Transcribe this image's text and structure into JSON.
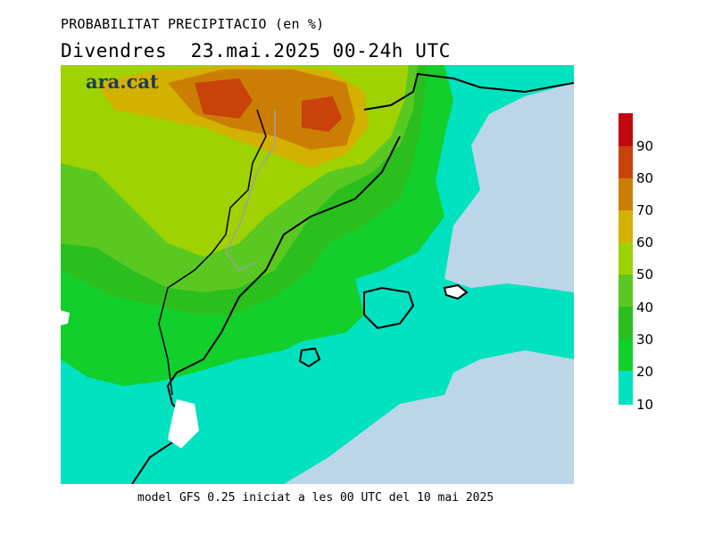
{
  "header": {
    "title": "PROBABILITAT PRECIPITACIO (en %)",
    "subtitle": "Divendres  23.mai.2025 00-24h UTC"
  },
  "logo": {
    "text": "ara.cat"
  },
  "legend": {
    "labels": [
      "90",
      "80",
      "70",
      "60",
      "50",
      "40",
      "30",
      "20",
      "10"
    ],
    "colors": [
      "#c3070f",
      "#c8420a",
      "#cc7e04",
      "#d2b100",
      "#9ed200",
      "#59c922",
      "#2bbf1e",
      "#12cf2c",
      "#00e2c0"
    ]
  },
  "map": {
    "sea_color": "#bad6e8",
    "coastline_color": "#000000",
    "border_color": "#a0a0a0"
  },
  "footer": {
    "text": "model GFS 0.25 iniciat a les 00 UTC del 10 mai 2025"
  }
}
